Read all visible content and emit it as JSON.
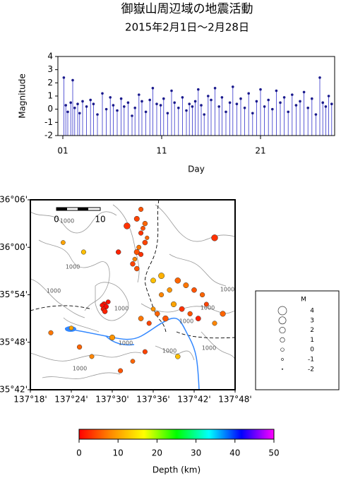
{
  "chart_data": [
    {
      "type": "stem",
      "title": "御嶽山周辺域の地震活動",
      "subtitle": "2015年2月1日～2月28日",
      "ylabel": "Magnitude",
      "xlabel": "Day",
      "color": "#3333cc",
      "marker_color": "#1a1a8c",
      "xlim": [
        0.5,
        28.5
      ],
      "xticks": [
        {
          "value": 1,
          "label": "01"
        },
        11,
        21
      ],
      "ylim": [
        -2,
        4
      ],
      "yticks": [
        -2,
        -1,
        0,
        1,
        2,
        3,
        4
      ],
      "x": [
        1.1,
        1.3,
        1.5,
        1.8,
        2.0,
        2.2,
        2.5,
        2.7,
        3.0,
        3.4,
        3.8,
        4.1,
        4.5,
        5.0,
        5.4,
        5.8,
        6.1,
        6.5,
        6.9,
        7.2,
        7.6,
        8.0,
        8.3,
        8.7,
        9.0,
        9.4,
        9.8,
        10.1,
        10.5,
        10.9,
        11.2,
        11.6,
        12.0,
        12.3,
        12.7,
        13.1,
        13.5,
        13.8,
        14.1,
        14.4,
        14.7,
        15.0,
        15.3,
        15.7,
        16.0,
        16.4,
        16.8,
        17.1,
        17.5,
        17.9,
        18.2,
        18.6,
        19.0,
        19.4,
        19.8,
        20.2,
        20.6,
        21.0,
        21.4,
        21.8,
        22.2,
        22.6,
        23.0,
        23.4,
        23.8,
        24.2,
        24.6,
        25.0,
        25.4,
        25.8,
        26.2,
        26.6,
        27.0,
        27.3,
        27.6,
        27.9,
        28.2
      ],
      "values": [
        2.4,
        0.3,
        -0.2,
        0.5,
        2.2,
        0.1,
        0.4,
        -0.3,
        0.6,
        0.2,
        0.7,
        0.4,
        -0.4,
        1.2,
        0.0,
        0.9,
        0.3,
        -0.1,
        0.8,
        0.2,
        0.5,
        -0.5,
        0.1,
        1.1,
        0.6,
        -0.2,
        0.7,
        1.6,
        0.4,
        0.3,
        0.8,
        -0.3,
        1.4,
        0.5,
        0.1,
        0.9,
        -0.1,
        0.4,
        0.2,
        0.6,
        1.5,
        0.3,
        -0.4,
        1.0,
        0.7,
        1.6,
        0.2,
        0.9,
        -0.2,
        0.5,
        1.7,
        0.4,
        0.8,
        0.1,
        1.2,
        -0.3,
        0.6,
        1.5,
        0.2,
        0.7,
        0.0,
        1.4,
        0.5,
        0.9,
        -0.2,
        1.1,
        0.3,
        0.6,
        1.3,
        0.1,
        0.8,
        -0.4,
        2.4,
        0.5,
        0.2,
        1.0,
        0.4
      ]
    },
    {
      "type": "bubble-map",
      "xlim": [
        137.3,
        137.8
      ],
      "ylim": [
        35.7,
        36.1
      ],
      "xticks": [
        {
          "value": 137.3,
          "label": "137°18'"
        },
        {
          "value": 137.4,
          "label": "137°24'"
        },
        {
          "value": 137.5,
          "label": "137°30'"
        },
        {
          "value": 137.6,
          "label": "137°36'"
        },
        {
          "value": 137.7,
          "label": "137°42'"
        },
        {
          "value": 137.8,
          "label": "137°48'"
        }
      ],
      "yticks": [
        {
          "value": 35.7,
          "label": "35°42'"
        },
        {
          "value": 35.8,
          "label": "35°48'"
        },
        {
          "value": 35.9,
          "label": "35°54'"
        },
        {
          "value": 36.0,
          "label": "36°00'"
        },
        {
          "value": 36.1,
          "label": "36°06'"
        }
      ],
      "x": [
        137.57,
        137.56,
        137.58,
        137.575,
        137.57,
        137.585,
        137.58,
        137.565,
        137.56,
        137.57,
        137.555,
        137.55,
        137.536,
        137.43,
        137.38,
        137.515,
        137.48,
        137.485,
        137.478,
        137.49,
        137.482,
        137.475,
        137.66,
        137.68,
        137.64,
        137.62,
        137.7,
        137.72,
        137.73,
        137.65,
        137.67,
        137.61,
        137.63,
        137.59,
        137.57,
        137.6,
        137.69,
        137.71,
        137.77,
        137.75,
        137.62,
        137.6,
        137.56,
        137.75,
        137.35,
        137.42,
        137.45,
        137.52,
        137.55,
        137.58,
        137.5,
        137.66,
        137.4
      ],
      "values": [
        36.08,
        36.06,
        36.05,
        36.04,
        36.03,
        36.02,
        36.01,
        36.0,
        35.99,
        35.985,
        35.975,
        35.965,
        36.045,
        35.99,
        36.01,
        35.99,
        35.88,
        35.875,
        35.87,
        35.885,
        35.865,
        35.878,
        35.93,
        35.92,
        35.91,
        35.9,
        35.91,
        35.9,
        35.88,
        35.88,
        35.87,
        35.86,
        35.85,
        35.84,
        35.85,
        35.87,
        35.86,
        35.85,
        35.86,
        35.84,
        35.94,
        35.93,
        35.955,
        36.02,
        35.82,
        35.79,
        35.77,
        35.74,
        35.76,
        35.78,
        35.81,
        35.77,
        35.83
      ],
      "sizes": [
        1.0,
        1.5,
        1.2,
        0.8,
        1.0,
        0.5,
        1.3,
        0.9,
        1.6,
        1.0,
        0.7,
        1.2,
        2.3,
        1.0,
        0.8,
        1.2,
        1.5,
        1.2,
        1.0,
        0.8,
        1.3,
        0.6,
        1.8,
        1.5,
        1.2,
        1.0,
        1.3,
        1.1,
        0.9,
        1.6,
        1.4,
        1.2,
        1.8,
        1.0,
        1.3,
        0.8,
        1.1,
        1.4,
        1.6,
        1.0,
        2.0,
        1.4,
        1.2,
        2.3,
        1.0,
        1.1,
        0.9,
        1.0,
        0.8,
        1.0,
        1.6,
        1.2,
        0.7
      ],
      "depths": [
        5,
        4,
        6,
        5,
        3,
        6,
        4,
        7,
        5,
        3,
        8,
        4,
        3,
        12,
        10,
        2,
        1,
        0.5,
        1,
        1,
        2,
        1,
        6,
        7,
        9,
        8,
        5,
        6,
        4,
        10,
        3,
        6,
        5,
        4,
        7,
        9,
        5,
        2,
        6,
        8,
        11,
        12,
        5,
        3,
        7,
        6,
        8,
        5,
        6,
        4,
        9,
        12,
        10
      ],
      "clim": [
        0,
        50
      ],
      "cticks": [
        0,
        10,
        20,
        30,
        40,
        50
      ],
      "colorbar_label": "Depth (km)",
      "colormap": [
        "#ff0000",
        "#ff8c00",
        "#ffff00",
        "#00ff00",
        "#00ffff",
        "#0000ff",
        "#ff00ff"
      ],
      "size_legend": {
        "title": "M",
        "values": [
          4,
          3,
          2,
          1,
          0,
          -1,
          -2
        ]
      },
      "scale_bar": [
        "0",
        "10"
      ],
      "contour_label": "1000"
    }
  ]
}
